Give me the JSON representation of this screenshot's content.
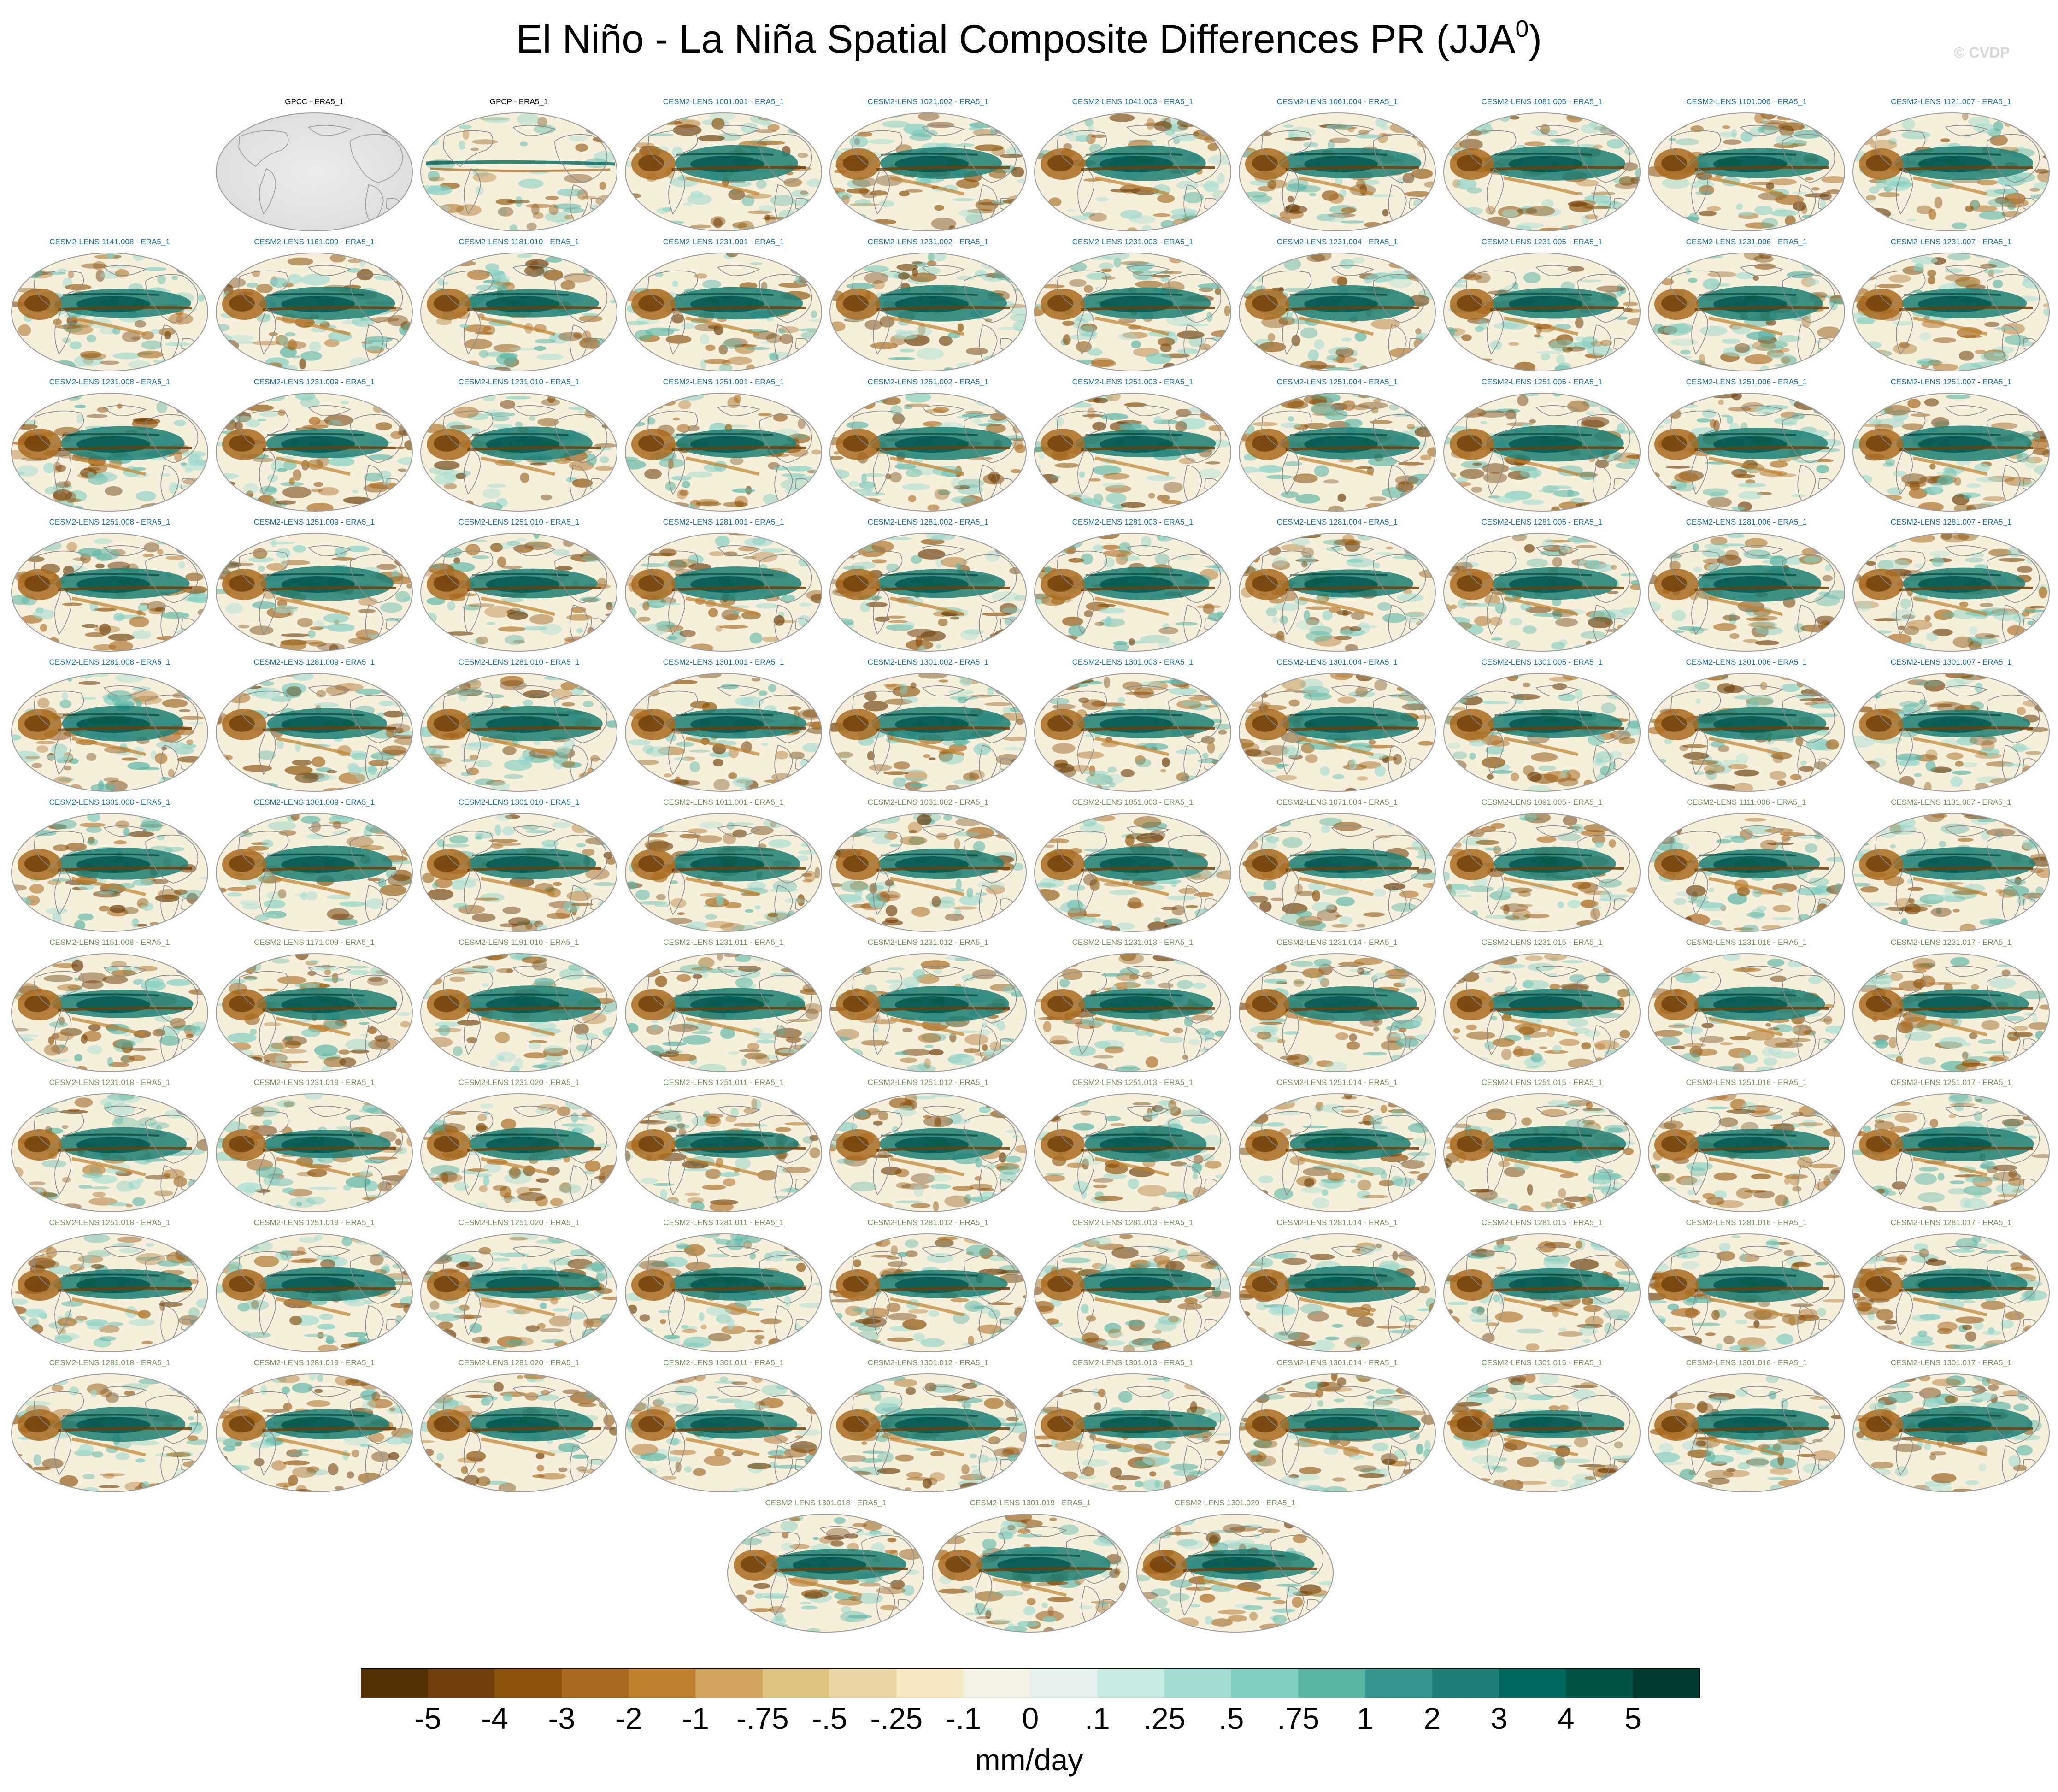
{
  "chart_data": {
    "type": "heatmap",
    "title_main": "El Niño - La Niña Spatial Composite Differences PR (JJA",
    "title_sup": "0",
    "title_end": ")",
    "watermark": "© CVDP",
    "colorbar": {
      "units": "mm/day",
      "ticks": [
        "-5",
        "-4",
        "-3",
        "-2",
        "-1",
        "-.75",
        "-.5",
        "-.25",
        "-.1",
        "0",
        ".1",
        ".25",
        ".5",
        ".75",
        "1",
        "2",
        "3",
        "4",
        "5"
      ],
      "colors": [
        "#543005",
        "#6e3f0a",
        "#8c510a",
        "#a96a1f",
        "#bf812d",
        "#d0a45c",
        "#dfc27d",
        "#ebd6a3",
        "#f6e8c3",
        "#f5f1e7",
        "#e6f1ef",
        "#c7eae5",
        "#a3dcd2",
        "#80cdc1",
        "#5ab4a6",
        "#35978f",
        "#1d7f76",
        "#01665e",
        "#015348",
        "#003c30"
      ]
    },
    "label_colors": {
      "obs": "#000000",
      "cmip6_a": "#1a6b96",
      "cmip6_b": "#6f8c5c"
    },
    "panels": [
      {
        "label": "GPCC - ERA5_1",
        "group": "obs",
        "field": "land"
      },
      {
        "label": "GPCP - ERA5_1",
        "group": "obs",
        "field": "obs"
      },
      {
        "label": "CESM2-LENS 1001.001 - ERA5_1",
        "group": "cmip6_a",
        "field": "model"
      },
      {
        "label": "CESM2-LENS 1021.002 - ERA5_1",
        "group": "cmip6_a",
        "field": "model"
      },
      {
        "label": "CESM2-LENS 1041.003 - ERA5_1",
        "group": "cmip6_a",
        "field": "model"
      },
      {
        "label": "CESM2-LENS 1061.004 - ERA5_1",
        "group": "cmip6_a",
        "field": "model"
      },
      {
        "label": "CESM2-LENS 1081.005 - ERA5_1",
        "group": "cmip6_a",
        "field": "model"
      },
      {
        "label": "CESM2-LENS 1101.006 - ERA5_1",
        "group": "cmip6_a",
        "field": "model"
      },
      {
        "label": "CESM2-LENS 1121.007 - ERA5_1",
        "group": "cmip6_a",
        "field": "model"
      },
      {
        "label": "CESM2-LENS 1141.008 - ERA5_1",
        "group": "cmip6_a",
        "field": "model"
      },
      {
        "label": "CESM2-LENS 1161.009 - ERA5_1",
        "group": "cmip6_a",
        "field": "model"
      },
      {
        "label": "CESM2-LENS 1181.010 - ERA5_1",
        "group": "cmip6_a",
        "field": "model"
      },
      {
        "label": "CESM2-LENS 1231.001 - ERA5_1",
        "group": "cmip6_a",
        "field": "model"
      },
      {
        "label": "CESM2-LENS 1231.002 - ERA5_1",
        "group": "cmip6_a",
        "field": "model"
      },
      {
        "label": "CESM2-LENS 1231.003 - ERA5_1",
        "group": "cmip6_a",
        "field": "model"
      },
      {
        "label": "CESM2-LENS 1231.004 - ERA5_1",
        "group": "cmip6_a",
        "field": "model"
      },
      {
        "label": "CESM2-LENS 1231.005 - ERA5_1",
        "group": "cmip6_a",
        "field": "model"
      },
      {
        "label": "CESM2-LENS 1231.006 - ERA5_1",
        "group": "cmip6_a",
        "field": "model"
      },
      {
        "label": "CESM2-LENS 1231.007 - ERA5_1",
        "group": "cmip6_a",
        "field": "model"
      },
      {
        "label": "CESM2-LENS 1231.008 - ERA5_1",
        "group": "cmip6_a",
        "field": "model"
      },
      {
        "label": "CESM2-LENS 1231.009 - ERA5_1",
        "group": "cmip6_a",
        "field": "model"
      },
      {
        "label": "CESM2-LENS 1231.010 - ERA5_1",
        "group": "cmip6_a",
        "field": "model"
      },
      {
        "label": "CESM2-LENS 1251.001 - ERA5_1",
        "group": "cmip6_a",
        "field": "model"
      },
      {
        "label": "CESM2-LENS 1251.002 - ERA5_1",
        "group": "cmip6_a",
        "field": "model"
      },
      {
        "label": "CESM2-LENS 1251.003 - ERA5_1",
        "group": "cmip6_a",
        "field": "model"
      },
      {
        "label": "CESM2-LENS 1251.004 - ERA5_1",
        "group": "cmip6_a",
        "field": "model"
      },
      {
        "label": "CESM2-LENS 1251.005 - ERA5_1",
        "group": "cmip6_a",
        "field": "model"
      },
      {
        "label": "CESM2-LENS 1251.006 - ERA5_1",
        "group": "cmip6_a",
        "field": "model"
      },
      {
        "label": "CESM2-LENS 1251.007 - ERA5_1",
        "group": "cmip6_a",
        "field": "model"
      },
      {
        "label": "CESM2-LENS 1251.008 - ERA5_1",
        "group": "cmip6_a",
        "field": "model"
      },
      {
        "label": "CESM2-LENS 1251.009 - ERA5_1",
        "group": "cmip6_a",
        "field": "model"
      },
      {
        "label": "CESM2-LENS 1251.010 - ERA5_1",
        "group": "cmip6_a",
        "field": "model"
      },
      {
        "label": "CESM2-LENS 1281.001 - ERA5_1",
        "group": "cmip6_a",
        "field": "model"
      },
      {
        "label": "CESM2-LENS 1281.002 - ERA5_1",
        "group": "cmip6_a",
        "field": "model"
      },
      {
        "label": "CESM2-LENS 1281.003 - ERA5_1",
        "group": "cmip6_a",
        "field": "model"
      },
      {
        "label": "CESM2-LENS 1281.004 - ERA5_1",
        "group": "cmip6_a",
        "field": "model"
      },
      {
        "label": "CESM2-LENS 1281.005 - ERA5_1",
        "group": "cmip6_a",
        "field": "model"
      },
      {
        "label": "CESM2-LENS 1281.006 - ERA5_1",
        "group": "cmip6_a",
        "field": "model"
      },
      {
        "label": "CESM2-LENS 1281.007 - ERA5_1",
        "group": "cmip6_a",
        "field": "model"
      },
      {
        "label": "CESM2-LENS 1281.008 - ERA5_1",
        "group": "cmip6_a",
        "field": "model"
      },
      {
        "label": "CESM2-LENS 1281.009 - ERA5_1",
        "group": "cmip6_a",
        "field": "model"
      },
      {
        "label": "CESM2-LENS 1281.010 - ERA5_1",
        "group": "cmip6_a",
        "field": "model"
      },
      {
        "label": "CESM2-LENS 1301.001 - ERA5_1",
        "group": "cmip6_a",
        "field": "model"
      },
      {
        "label": "CESM2-LENS 1301.002 - ERA5_1",
        "group": "cmip6_a",
        "field": "model"
      },
      {
        "label": "CESM2-LENS 1301.003 - ERA5_1",
        "group": "cmip6_a",
        "field": "model"
      },
      {
        "label": "CESM2-LENS 1301.004 - ERA5_1",
        "group": "cmip6_a",
        "field": "model"
      },
      {
        "label": "CESM2-LENS 1301.005 - ERA5_1",
        "group": "cmip6_a",
        "field": "model"
      },
      {
        "label": "CESM2-LENS 1301.006 - ERA5_1",
        "group": "cmip6_a",
        "field": "model"
      },
      {
        "label": "CESM2-LENS 1301.007 - ERA5_1",
        "group": "cmip6_a",
        "field": "model"
      },
      {
        "label": "CESM2-LENS 1301.008 - ERA5_1",
        "group": "cmip6_a",
        "field": "model"
      },
      {
        "label": "CESM2-LENS 1301.009 - ERA5_1",
        "group": "cmip6_a",
        "field": "model"
      },
      {
        "label": "CESM2-LENS 1301.010 - ERA5_1",
        "group": "cmip6_a",
        "field": "model"
      },
      {
        "label": "CESM2-LENS 1011.001 - ERA5_1",
        "group": "cmip6_b",
        "field": "model"
      },
      {
        "label": "CESM2-LENS 1031.002 - ERA5_1",
        "group": "cmip6_b",
        "field": "model"
      },
      {
        "label": "CESM2-LENS 1051.003 - ERA5_1",
        "group": "cmip6_b",
        "field": "model"
      },
      {
        "label": "CESM2-LENS 1071.004 - ERA5_1",
        "group": "cmip6_b",
        "field": "model"
      },
      {
        "label": "CESM2-LENS 1091.005 - ERA5_1",
        "group": "cmip6_b",
        "field": "model"
      },
      {
        "label": "CESM2-LENS 1111.006 - ERA5_1",
        "group": "cmip6_b",
        "field": "model"
      },
      {
        "label": "CESM2-LENS 1131.007 - ERA5_1",
        "group": "cmip6_b",
        "field": "model"
      },
      {
        "label": "CESM2-LENS 1151.008 - ERA5_1",
        "group": "cmip6_b",
        "field": "model"
      },
      {
        "label": "CESM2-LENS 1171.009 - ERA5_1",
        "group": "cmip6_b",
        "field": "model"
      },
      {
        "label": "CESM2-LENS 1191.010 - ERA5_1",
        "group": "cmip6_b",
        "field": "model"
      },
      {
        "label": "CESM2-LENS 1231.011 - ERA5_1",
        "group": "cmip6_b",
        "field": "model"
      },
      {
        "label": "CESM2-LENS 1231.012 - ERA5_1",
        "group": "cmip6_b",
        "field": "model"
      },
      {
        "label": "CESM2-LENS 1231.013 - ERA5_1",
        "group": "cmip6_b",
        "field": "model"
      },
      {
        "label": "CESM2-LENS 1231.014 - ERA5_1",
        "group": "cmip6_b",
        "field": "model"
      },
      {
        "label": "CESM2-LENS 1231.015 - ERA5_1",
        "group": "cmip6_b",
        "field": "model"
      },
      {
        "label": "CESM2-LENS 1231.016 - ERA5_1",
        "group": "cmip6_b",
        "field": "model"
      },
      {
        "label": "CESM2-LENS 1231.017 - ERA5_1",
        "group": "cmip6_b",
        "field": "model"
      },
      {
        "label": "CESM2-LENS 1231.018 - ERA5_1",
        "group": "cmip6_b",
        "field": "model"
      },
      {
        "label": "CESM2-LENS 1231.019 - ERA5_1",
        "group": "cmip6_b",
        "field": "model"
      },
      {
        "label": "CESM2-LENS 1231.020 - ERA5_1",
        "group": "cmip6_b",
        "field": "model"
      },
      {
        "label": "CESM2-LENS 1251.011 - ERA5_1",
        "group": "cmip6_b",
        "field": "model"
      },
      {
        "label": "CESM2-LENS 1251.012 - ERA5_1",
        "group": "cmip6_b",
        "field": "model"
      },
      {
        "label": "CESM2-LENS 1251.013 - ERA5_1",
        "group": "cmip6_b",
        "field": "model"
      },
      {
        "label": "CESM2-LENS 1251.014 - ERA5_1",
        "group": "cmip6_b",
        "field": "model"
      },
      {
        "label": "CESM2-LENS 1251.015 - ERA5_1",
        "group": "cmip6_b",
        "field": "model"
      },
      {
        "label": "CESM2-LENS 1251.016 - ERA5_1",
        "group": "cmip6_b",
        "field": "model"
      },
      {
        "label": "CESM2-LENS 1251.017 - ERA5_1",
        "group": "cmip6_b",
        "field": "model"
      },
      {
        "label": "CESM2-LENS 1251.018 - ERA5_1",
        "group": "cmip6_b",
        "field": "model"
      },
      {
        "label": "CESM2-LENS 1251.019 - ERA5_1",
        "group": "cmip6_b",
        "field": "model"
      },
      {
        "label": "CESM2-LENS 1251.020 - ERA5_1",
        "group": "cmip6_b",
        "field": "model"
      },
      {
        "label": "CESM2-LENS 1281.011 - ERA5_1",
        "group": "cmip6_b",
        "field": "model"
      },
      {
        "label": "CESM2-LENS 1281.012 - ERA5_1",
        "group": "cmip6_b",
        "field": "model"
      },
      {
        "label": "CESM2-LENS 1281.013 - ERA5_1",
        "group": "cmip6_b",
        "field": "model"
      },
      {
        "label": "CESM2-LENS 1281.014 - ERA5_1",
        "group": "cmip6_b",
        "field": "model"
      },
      {
        "label": "CESM2-LENS 1281.015 - ERA5_1",
        "group": "cmip6_b",
        "field": "model"
      },
      {
        "label": "CESM2-LENS 1281.016 - ERA5_1",
        "group": "cmip6_b",
        "field": "model"
      },
      {
        "label": "CESM2-LENS 1281.017 - ERA5_1",
        "group": "cmip6_b",
        "field": "model"
      },
      {
        "label": "CESM2-LENS 1281.018 - ERA5_1",
        "group": "cmip6_b",
        "field": "model"
      },
      {
        "label": "CESM2-LENS 1281.019 - ERA5_1",
        "group": "cmip6_b",
        "field": "model"
      },
      {
        "label": "CESM2-LENS 1281.020 - ERA5_1",
        "group": "cmip6_b",
        "field": "model"
      },
      {
        "label": "CESM2-LENS 1301.011 - ERA5_1",
        "group": "cmip6_b",
        "field": "model"
      },
      {
        "label": "CESM2-LENS 1301.012 - ERA5_1",
        "group": "cmip6_b",
        "field": "model"
      },
      {
        "label": "CESM2-LENS 1301.013 - ERA5_1",
        "group": "cmip6_b",
        "field": "model"
      },
      {
        "label": "CESM2-LENS 1301.014 - ERA5_1",
        "group": "cmip6_b",
        "field": "model"
      },
      {
        "label": "CESM2-LENS 1301.015 - ERA5_1",
        "group": "cmip6_b",
        "field": "model"
      },
      {
        "label": "CESM2-LENS 1301.016 - ERA5_1",
        "group": "cmip6_b",
        "field": "model"
      },
      {
        "label": "CESM2-LENS 1301.017 - ERA5_1",
        "group": "cmip6_b",
        "field": "model"
      },
      {
        "label": "CESM2-LENS 1301.018 - ERA5_1",
        "group": "cmip6_b",
        "field": "model"
      },
      {
        "label": "CESM2-LENS 1301.019 - ERA5_1",
        "group": "cmip6_b",
        "field": "model"
      },
      {
        "label": "CESM2-LENS 1301.020 - ERA5_1",
        "group": "cmip6_b",
        "field": "model"
      }
    ]
  }
}
